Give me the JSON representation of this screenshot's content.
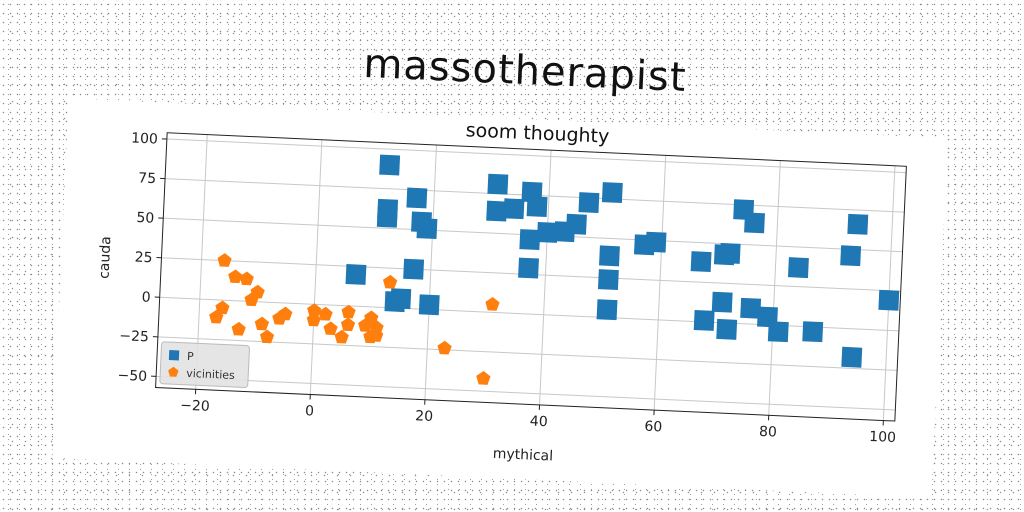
{
  "page": {
    "title": "massotherapist"
  },
  "chart_data": {
    "type": "scatter",
    "title": "soom thoughty",
    "xlabel": "mythical",
    "ylabel": "cauda",
    "xlim": [
      -27,
      102
    ],
    "ylim": [
      -57,
      104
    ],
    "xticks": [
      -20,
      0,
      20,
      40,
      60,
      80,
      100
    ],
    "yticks": [
      -50,
      -25,
      0,
      25,
      50,
      75,
      100
    ],
    "grid": true,
    "legend_position": "bottom-left",
    "series": [
      {
        "name": "P",
        "color": "#1f77b4",
        "marker": "square",
        "points": [
          [
            12,
            90
          ],
          [
            12,
            62
          ],
          [
            12,
            57
          ],
          [
            17,
            70
          ],
          [
            18,
            55
          ],
          [
            19,
            51
          ],
          [
            7,
            20
          ],
          [
            17,
            25
          ],
          [
            14,
            4
          ],
          [
            15,
            6
          ],
          [
            20,
            3
          ],
          [
            31,
            81
          ],
          [
            31,
            64
          ],
          [
            34,
            66
          ],
          [
            37,
            77
          ],
          [
            38,
            68
          ],
          [
            37,
            47
          ],
          [
            37,
            29
          ],
          [
            40,
            52
          ],
          [
            43,
            53
          ],
          [
            45,
            58
          ],
          [
            47,
            72
          ],
          [
            51,
            79
          ],
          [
            51,
            39
          ],
          [
            51,
            24
          ],
          [
            51,
            5
          ],
          [
            57,
            47
          ],
          [
            59,
            49
          ],
          [
            67,
            38
          ],
          [
            68,
            1
          ],
          [
            71,
            43
          ],
          [
            72,
            44
          ],
          [
            71,
            13
          ],
          [
            72,
            -4
          ],
          [
            74,
            72
          ],
          [
            76,
            64
          ],
          [
            76,
            10
          ],
          [
            79,
            5
          ],
          [
            81,
            -4
          ],
          [
            84,
            37
          ],
          [
            87,
            -3
          ],
          [
            93,
            46
          ],
          [
            94,
            66
          ],
          [
            94,
            -18
          ],
          [
            100,
            19
          ]
        ]
      },
      {
        "name": "vicinities",
        "color": "#ff7f0e",
        "marker": "pentagon",
        "points": [
          [
            -16,
            25
          ],
          [
            -14,
            15
          ],
          [
            -12,
            14
          ],
          [
            -10,
            6
          ],
          [
            -11,
            1
          ],
          [
            -16,
            -5
          ],
          [
            -17,
            -11
          ],
          [
            -13,
            -18
          ],
          [
            -9,
            -14
          ],
          [
            -6,
            -10
          ],
          [
            -5,
            -7
          ],
          [
            -8,
            -22
          ],
          [
            0,
            -4
          ],
          [
            2,
            -6
          ],
          [
            0,
            -10
          ],
          [
            3,
            -15
          ],
          [
            6,
            -12
          ],
          [
            6,
            -4
          ],
          [
            9,
            -12
          ],
          [
            10,
            -7
          ],
          [
            11,
            -13
          ],
          [
            5,
            -20
          ],
          [
            10,
            -19
          ],
          [
            11,
            -18
          ],
          [
            13,
            16
          ],
          [
            23,
            -24
          ],
          [
            31,
            5
          ],
          [
            30,
            -42
          ]
        ]
      }
    ]
  }
}
